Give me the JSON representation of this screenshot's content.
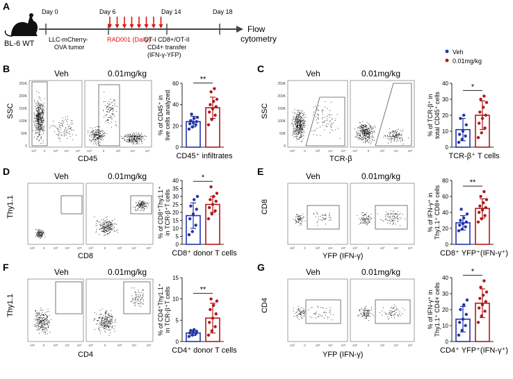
{
  "colors": {
    "veh": "#2233aa",
    "treat": "#b01818",
    "arrow": "#e01010",
    "axis": "#222222",
    "dots": "#111111",
    "gate": "#555555"
  },
  "timeline": {
    "panel": "A",
    "mouse_label": "BL-6 WT",
    "days": [
      "Day 0",
      "Day 6",
      "Day 14",
      "Day 18"
    ],
    "day0_note": [
      "LLC-mCherry-",
      "OVA tumor"
    ],
    "rad_note": "RAD001 (Daily)",
    "transfer_note": [
      "OT-I CD8+/OT-II",
      "CD4+ transfer",
      "(IFN-γ-YFP)"
    ],
    "end_note": [
      "Flow",
      "cytometry"
    ]
  },
  "legend": [
    {
      "label": "Veh",
      "color": "#2233aa",
      "marker": "circle"
    },
    {
      "label": "0.01mg/kg",
      "color": "#b01818",
      "marker": "circle"
    }
  ],
  "flow_panels": [
    {
      "id": "B",
      "title_left": "Veh",
      "title_right": "0.01mg/kg",
      "y_label": "SSC",
      "x_label": "CD45"
    },
    {
      "id": "C",
      "title_left": "Veh",
      "title_right": "0.01mg/kg",
      "y_label": "SSC",
      "x_label": "TCR-β"
    },
    {
      "id": "D",
      "title_left": "Veh",
      "title_right": "0.01mg/kg",
      "y_label": "Thy1.1",
      "x_label": "CD8"
    },
    {
      "id": "E",
      "title_left": "Veh",
      "title_right": "0.01mg/kg",
      "y_label": "CD8",
      "x_label": "YFP (IFN-γ)"
    },
    {
      "id": "F",
      "title_left": "Veh",
      "title_right": "0.01mg/kg",
      "y_label": "Thy1.1",
      "x_label": "CD4"
    },
    {
      "id": "G",
      "title_left": "Veh",
      "title_right": "0.01mg/kg",
      "y_label": "CD4",
      "x_label": "YFP (IFN-γ)"
    }
  ],
  "ssc_ticks": [
    "250K",
    "200K",
    "150K",
    "100K",
    "50K",
    "0"
  ],
  "log_ticks": [
    "-10³",
    "0",
    "10³",
    "10⁴",
    "10⁵"
  ],
  "chart_data": [
    {
      "id": "B",
      "type": "bar",
      "categories": [
        "Veh",
        "0.01mg/kg"
      ],
      "ylabel": [
        "% of CD45⁺ in",
        "live cells analyzed"
      ],
      "xlabel": "CD45⁺ infiltrates",
      "ylim": [
        0,
        60
      ],
      "yticks": [
        "0",
        "20",
        "40",
        "60"
      ],
      "significance": "**",
      "series": [
        {
          "name": "Veh",
          "mean": 24,
          "sd": 5,
          "points": [
            17,
            19,
            21,
            22,
            23,
            24,
            25,
            27,
            28,
            31
          ]
        },
        {
          "name": "0.01mg/kg",
          "mean": 37,
          "sd": 10,
          "points": [
            21,
            26,
            30,
            33,
            36,
            38,
            40,
            43,
            45,
            52,
            55
          ]
        }
      ]
    },
    {
      "id": "C",
      "type": "bar",
      "categories": [
        "Veh",
        "0.01mg/kg"
      ],
      "ylabel": [
        "% of TCR-β⁺ in",
        "total CD45⁺ cells"
      ],
      "xlabel": "TCR-β⁺ T cells",
      "ylim": [
        0,
        40
      ],
      "yticks": [
        "0",
        "10",
        "20",
        "30",
        "40"
      ],
      "significance": "*",
      "series": [
        {
          "name": "Veh",
          "mean": 11,
          "sd": 7,
          "points": [
            3,
            5,
            7,
            8,
            10,
            14,
            18,
            20
          ]
        },
        {
          "name": "0.01mg/kg",
          "mean": 20,
          "sd": 9,
          "points": [
            6,
            9,
            12,
            15,
            18,
            20,
            22,
            25,
            28,
            30,
            32
          ]
        }
      ]
    },
    {
      "id": "D",
      "type": "bar",
      "categories": [
        "Veh",
        "0.01mg/kg"
      ],
      "ylabel": [
        "% of CD8⁺Thy1.1⁺",
        "in TCR-β⁺T cells"
      ],
      "xlabel": "CD8⁺ donor T cells",
      "ylim": [
        0,
        40
      ],
      "yticks": [
        "0",
        "5",
        "10",
        "15",
        "20",
        "25",
        "30",
        "35",
        "40"
      ],
      "significance": "*",
      "series": [
        {
          "name": "Veh",
          "mean": 18,
          "sd": 8,
          "points": [
            6,
            8,
            12,
            16,
            19,
            22,
            24,
            28,
            30
          ]
        },
        {
          "name": "0.01mg/kg",
          "mean": 25,
          "sd": 5,
          "points": [
            16,
            19,
            21,
            23,
            25,
            27,
            28,
            30,
            32,
            36
          ]
        }
      ]
    },
    {
      "id": "E",
      "type": "bar",
      "categories": [
        "Veh",
        "0.01mg/kg"
      ],
      "ylabel": [
        "% of IFN-γ⁺ in",
        "Thy1.1⁺ CD8+ cells"
      ],
      "xlabel": "CD8⁺ YFP⁺(IFN-γ⁺)",
      "ylim": [
        0,
        80
      ],
      "yticks": [
        "0",
        "20",
        "40",
        "60",
        "80"
      ],
      "significance": "**",
      "series": [
        {
          "name": "Veh",
          "mean": 27,
          "sd": 9,
          "points": [
            17,
            19,
            22,
            24,
            26,
            28,
            30,
            33,
            38,
            44
          ]
        },
        {
          "name": "0.01mg/kg",
          "mean": 45,
          "sd": 12,
          "points": [
            28,
            32,
            36,
            40,
            43,
            46,
            48,
            52,
            56,
            60,
            66
          ]
        }
      ]
    },
    {
      "id": "F",
      "type": "bar",
      "categories": [
        "Veh",
        "0.01mg/kg"
      ],
      "ylabel": [
        "% of CD4⁺Thy1.1⁺",
        "in TCR-β⁺T cells"
      ],
      "xlabel": "CD4⁺ donor T cells",
      "ylim": [
        0,
        15
      ],
      "yticks": [
        "0",
        "5",
        "10",
        "15"
      ],
      "significance": "**",
      "series": [
        {
          "name": "Veh",
          "mean": 2,
          "sd": 0.6,
          "points": [
            1.2,
            1.5,
            1.8,
            2.0,
            2.2,
            2.4,
            2.6,
            2.8
          ]
        },
        {
          "name": "0.01mg/kg",
          "mean": 5.5,
          "sd": 3.5,
          "points": [
            1.5,
            2.5,
            3.5,
            4.5,
            5.5,
            6.5,
            7.5,
            8.5,
            9.5,
            10
          ]
        }
      ]
    },
    {
      "id": "G",
      "type": "bar",
      "categories": [
        "Veh",
        "0.01mg/kg"
      ],
      "ylabel": [
        "% of IFN-γ⁺ in",
        "Thy1.1⁺ CD4+ cells"
      ],
      "xlabel": "CD4⁺ YFP⁺(IFN-γ⁺)",
      "ylim": [
        0,
        40
      ],
      "yticks": [
        "0",
        "10",
        "20",
        "30",
        "40"
      ],
      "significance": "*",
      "series": [
        {
          "name": "Veh",
          "mean": 14,
          "sd": 8,
          "points": [
            4,
            7,
            10,
            12,
            14,
            17,
            20,
            23,
            26
          ]
        },
        {
          "name": "0.01mg/kg",
          "mean": 24,
          "sd": 9,
          "points": [
            12,
            16,
            19,
            21,
            23,
            25,
            27,
            29,
            31,
            34,
            38
          ]
        }
      ]
    }
  ]
}
